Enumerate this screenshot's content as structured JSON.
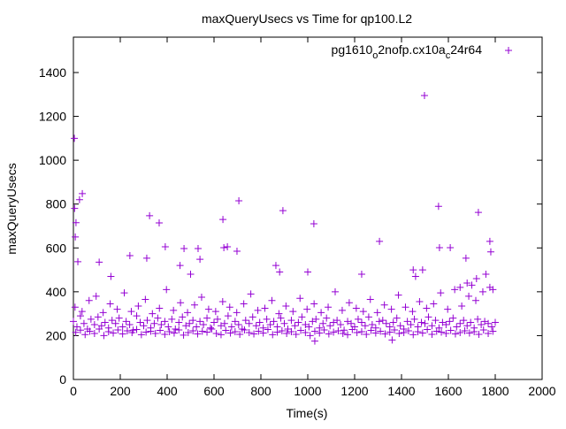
{
  "chart_data": {
    "type": "scatter",
    "title": "maxQueryUsecs vs Time for qp100.L2",
    "xlabel": "Time(s)",
    "ylabel": "maxQueryUsecs",
    "xlim": [
      0,
      2000
    ],
    "ylim": [
      0,
      1550
    ],
    "xticks": [
      "0",
      "200",
      "400",
      "600",
      "800",
      "1000",
      "1200",
      "1400",
      "1600",
      "1800",
      "2000"
    ],
    "yticks": [
      "0",
      "200",
      "400",
      "600",
      "800",
      "1000",
      "1200",
      "1400"
    ],
    "grid": false,
    "legend_position": "top-right",
    "legend_parts": [
      "pg1610",
      "o",
      "2nofp.cx10a",
      "c",
      "24r64"
    ],
    "series_color": "#9400d3",
    "marker": "+",
    "bulk_main": {
      "x_start": 0,
      "x_step": 15,
      "y": [
        265,
        240,
        290,
        255,
        230,
        275,
        250,
        285,
        245,
        260,
        235,
        270,
        255,
        280,
        240,
        265,
        250,
        225,
        290,
        260,
        245,
        270,
        235,
        255,
        280,
        250,
        265,
        240,
        275,
        230,
        260,
        285,
        245,
        255,
        270,
        240,
        265,
        250,
        280,
        235,
        260,
        275,
        245,
        255,
        290,
        240,
        265,
        250,
        230,
        270,
        255,
        285,
        245,
        260,
        235,
        275,
        250,
        265,
        240,
        280,
        255,
        230,
        270,
        245,
        260,
        285,
        250,
        240,
        265,
        275,
        235,
        255,
        280,
        245,
        260,
        270,
        250,
        225,
        265,
        255,
        240,
        275,
        260,
        245,
        285,
        250,
        235,
        265,
        270,
        255,
        240,
        260,
        280,
        245,
        230,
        265,
        250,
        275,
        240,
        260,
        255,
        285,
        245,
        270,
        235,
        260,
        250,
        265,
        280,
        240,
        255,
        270,
        245,
        260,
        235,
        275,
        250,
        265,
        255,
        240,
        260
      ]
    },
    "bulk_upper": {
      "x_start": 7,
      "x_step": 30,
      "y": [
        330,
        310,
        360,
        380,
        305,
        345,
        320,
        395,
        310,
        335,
        365,
        300,
        325,
        410,
        315,
        350,
        305,
        340,
        375,
        320,
        310,
        355,
        330,
        305,
        345,
        390,
        315,
        325,
        360,
        300,
        335,
        310,
        370,
        320,
        345,
        305,
        330,
        400,
        315,
        350,
        325,
        310,
        365,
        305,
        340,
        320,
        385,
        330,
        310,
        355,
        325,
        345,
        395,
        320,
        410,
        335,
        380,
        360,
        400,
        420,
        350
      ]
    },
    "bulk_lower": {
      "x_start": 10,
      "x_step": 20,
      "y": [
        215,
        225,
        205,
        220,
        210,
        230,
        200,
        218,
        212,
        226,
        208,
        222,
        214,
        228,
        204,
        216,
        220,
        210,
        224,
        206,
        218,
        212,
        226,
        202,
        214,
        222,
        208,
        220,
        216,
        230,
        210,
        204,
        224,
        212,
        218,
        206,
        226,
        214,
        208,
        220,
        212,
        228,
        204,
        216,
        222,
        210,
        218,
        206,
        224,
        214,
        200,
        220,
        212,
        226,
        208,
        216,
        222,
        210,
        204,
        228,
        214,
        218,
        206,
        224,
        212,
        220,
        208,
        216,
        226,
        210,
        214,
        222,
        204,
        218,
        212,
        228,
        206,
        220,
        216,
        210,
        224,
        208,
        214,
        222,
        212,
        218,
        206,
        226,
        210,
        220,
        214
      ]
    },
    "outliers": [
      [
        4,
        1100
      ],
      [
        26,
        820
      ],
      [
        38,
        848
      ],
      [
        5,
        780
      ],
      [
        11,
        715
      ],
      [
        8,
        650
      ],
      [
        19,
        537
      ],
      [
        110,
        535
      ],
      [
        241,
        565
      ],
      [
        325,
        747
      ],
      [
        366,
        714
      ],
      [
        392,
        605
      ],
      [
        313,
        553
      ],
      [
        472,
        597
      ],
      [
        532,
        597
      ],
      [
        540,
        548
      ],
      [
        642,
        601
      ],
      [
        638,
        730
      ],
      [
        657,
        605
      ],
      [
        706,
        815
      ],
      [
        698,
        585
      ],
      [
        894,
        770
      ],
      [
        1026,
        710
      ],
      [
        1306,
        630
      ],
      [
        1498,
        1295
      ],
      [
        1558,
        790
      ],
      [
        1562,
        601
      ],
      [
        1608,
        601
      ],
      [
        1675,
        553
      ],
      [
        1728,
        762
      ],
      [
        1777,
        630
      ],
      [
        1781,
        582
      ],
      [
        864,
        520
      ],
      [
        880,
        490
      ],
      [
        1000,
        490
      ],
      [
        1450,
        500
      ],
      [
        1460,
        470
      ],
      [
        1490,
        500
      ],
      [
        1230,
        480
      ],
      [
        455,
        520
      ],
      [
        500,
        480
      ],
      [
        160,
        470
      ],
      [
        1760,
        480
      ],
      [
        1790,
        410
      ],
      [
        1700,
        430
      ],
      [
        1720,
        460
      ],
      [
        1360,
        180
      ],
      [
        1030,
        175
      ],
      [
        1650,
        420
      ],
      [
        1680,
        440
      ]
    ]
  }
}
